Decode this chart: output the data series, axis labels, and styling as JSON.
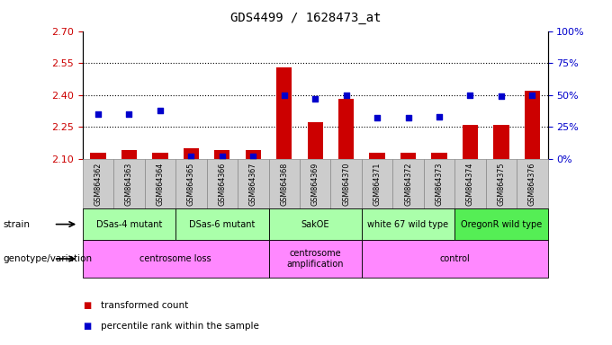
{
  "title": "GDS4499 / 1628473_at",
  "samples": [
    "GSM864362",
    "GSM864363",
    "GSM864364",
    "GSM864365",
    "GSM864366",
    "GSM864367",
    "GSM864368",
    "GSM864369",
    "GSM864370",
    "GSM864371",
    "GSM864372",
    "GSM864373",
    "GSM864374",
    "GSM864375",
    "GSM864376"
  ],
  "transformed_counts": [
    2.13,
    2.14,
    2.13,
    2.15,
    2.14,
    2.14,
    2.53,
    2.27,
    2.38,
    2.13,
    2.13,
    2.13,
    2.26,
    2.26,
    2.42
  ],
  "percentile_ranks": [
    35,
    35,
    38,
    2,
    2,
    2,
    50,
    47,
    50,
    32,
    32,
    33,
    50,
    49,
    50
  ],
  "ylim_left": [
    2.1,
    2.7
  ],
  "ylim_right": [
    0,
    100
  ],
  "yticks_left": [
    2.1,
    2.25,
    2.4,
    2.55,
    2.7
  ],
  "yticks_right": [
    0,
    25,
    50,
    75,
    100
  ],
  "bar_color": "#cc0000",
  "dot_color": "#0000cc",
  "bar_bottom": 2.1,
  "strain_groups": [
    {
      "label": "DSas-4 mutant",
      "start": 0,
      "end": 3,
      "color": "#aaffaa"
    },
    {
      "label": "DSas-6 mutant",
      "start": 3,
      "end": 6,
      "color": "#aaffaa"
    },
    {
      "label": "SakOE",
      "start": 6,
      "end": 9,
      "color": "#aaffaa"
    },
    {
      "label": "white 67 wild type",
      "start": 9,
      "end": 12,
      "color": "#aaffaa"
    },
    {
      "label": "OregonR wild type",
      "start": 12,
      "end": 15,
      "color": "#55ee55"
    }
  ],
  "genotype_groups": [
    {
      "label": "centrosome loss",
      "start": 0,
      "end": 6,
      "color": "#ff88ff"
    },
    {
      "label": "centrosome\namplification",
      "start": 6,
      "end": 9,
      "color": "#ff88ff"
    },
    {
      "label": "control",
      "start": 9,
      "end": 15,
      "color": "#ff88ff"
    }
  ],
  "legend_items": [
    {
      "color": "#cc0000",
      "label": "transformed count"
    },
    {
      "color": "#0000cc",
      "label": "percentile rank within the sample"
    }
  ],
  "grid_color": "black",
  "grid_linestyle": "dotted",
  "grid_linewidth": 0.8,
  "tick_label_color_left": "#cc0000",
  "tick_label_color_right": "#0000cc",
  "background_color": "#ffffff",
  "sample_box_color": "#cccccc",
  "sample_box_edge": "#888888"
}
